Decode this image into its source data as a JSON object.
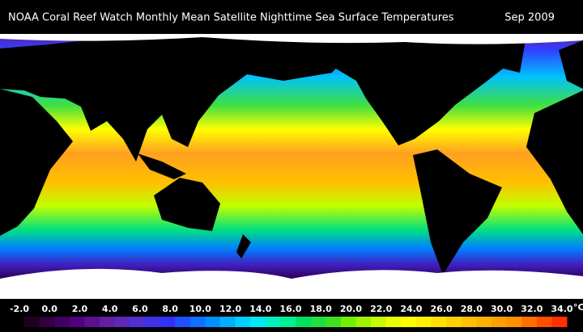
{
  "header": {
    "title": "NOAA Coral Reef Watch Monthly Mean Satellite Nighttime Sea Surface Temperatures",
    "date": "Sep 2009"
  },
  "colorbar": {
    "unit": "°C",
    "ticks": [
      {
        "value": -2,
        "label": "-2.0"
      },
      {
        "value": 0,
        "label": "0.0"
      },
      {
        "value": 2,
        "label": "2.0"
      },
      {
        "value": 4,
        "label": "4.0"
      },
      {
        "value": 6,
        "label": "6.0"
      },
      {
        "value": 8,
        "label": "8.0"
      },
      {
        "value": 10,
        "label": "10.0"
      },
      {
        "value": 12,
        "label": "12.0"
      },
      {
        "value": 14,
        "label": "14.0"
      },
      {
        "value": 16,
        "label": "16.0"
      },
      {
        "value": 18,
        "label": "18.0"
      },
      {
        "value": 20,
        "label": "20.0"
      },
      {
        "value": 22,
        "label": "22.0"
      },
      {
        "value": 24,
        "label": "24.0"
      },
      {
        "value": 26,
        "label": "26.0"
      },
      {
        "value": 28,
        "label": "28.0"
      },
      {
        "value": 30,
        "label": "30.0"
      },
      {
        "value": 32,
        "label": "32.0"
      },
      {
        "value": 34,
        "label": "34.0"
      }
    ],
    "colors": [
      "#200020",
      "#300040",
      "#400060",
      "#500080",
      "#5a1090",
      "#6020a0",
      "#6028b8",
      "#5030d0",
      "#4030e8",
      "#3030ff",
      "#2050ff",
      "#1070ff",
      "#0090ff",
      "#00b0ff",
      "#00d0ff",
      "#00e8f0",
      "#00f0c0",
      "#00f090",
      "#00e060",
      "#20e040",
      "#40e020",
      "#70f000",
      "#a0f000",
      "#c8f800",
      "#e8ff00",
      "#ffff00",
      "#fff000",
      "#ffe000",
      "#ffd000",
      "#ffc000",
      "#ffb000",
      "#ffa000",
      "#ff9000",
      "#ff7000",
      "#ff5000",
      "#ff3000"
    ]
  }
}
